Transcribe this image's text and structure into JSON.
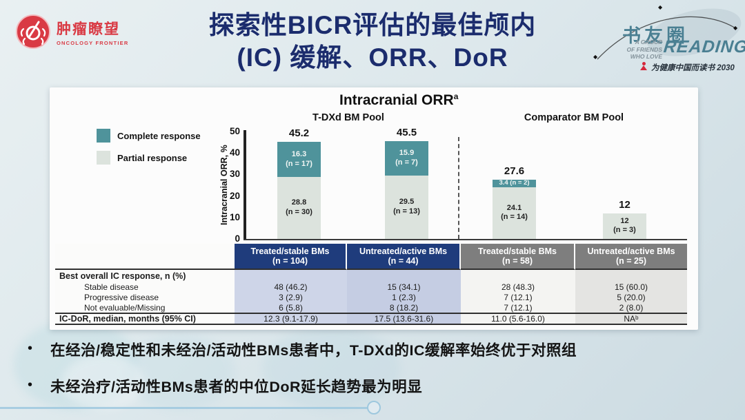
{
  "header": {
    "logo_left": {
      "name_cn": "肿瘤瞭望",
      "name_en": "ONCOLOGY FRONTIER"
    },
    "title_line1": "探索性BICR评估的最佳颅内",
    "title_line2": "(IC) 缓解、ORR、DoR",
    "logo_right": {
      "name_cn": "书友圈",
      "tagline_line1": "A GROUP",
      "tagline_line2": "OF FRIENDS",
      "tagline_line3": "WHO LOVE",
      "name_en": "READING",
      "slogan": "为健康中国而读书 2030"
    }
  },
  "chart_data": {
    "type": "bar",
    "stacked": true,
    "title": "Intracranial ORR",
    "title_sup": "a",
    "ylabel": "Intracranial ORR, %",
    "ylim": [
      0,
      50
    ],
    "yticks": [
      50,
      40,
      30,
      20,
      10,
      0
    ],
    "grid": false,
    "legend_position": "left",
    "groups": [
      "T-DXd BM Pool",
      "Comparator BM Pool"
    ],
    "categories": [
      "Treated/stable BMs (n = 104)",
      "Untreated/active BMs (n = 44)",
      "Treated/stable BMs (n = 58)",
      "Untreated/active BMs (n = 25)"
    ],
    "totals": [
      45.2,
      45.5,
      27.6,
      12
    ],
    "total_labels": [
      "45.2",
      "45.5",
      "27.6",
      "12"
    ],
    "series": [
      {
        "name": "Complete response",
        "color": "#4f939b",
        "values": [
          16.3,
          15.9,
          3.4,
          0
        ],
        "segment_labels": [
          [
            "16.3",
            "(n = 17)"
          ],
          [
            "15.9",
            "(n = 7)"
          ],
          [
            "3.4 (n = 2)"
          ],
          []
        ]
      },
      {
        "name": "Partial response",
        "color": "#dce3dd",
        "values": [
          28.8,
          29.5,
          24.1,
          12
        ],
        "segment_labels": [
          [
            "28.8",
            "(n = 30)"
          ],
          [
            "29.5",
            "(n = 13)"
          ],
          [
            "24.1",
            "(n = 14)"
          ],
          [
            "12",
            "(n = 3)"
          ]
        ]
      }
    ]
  },
  "table": {
    "col_headers": [
      {
        "line1": "Treated/stable BMs",
        "line2": "(n = 104)",
        "style": "navy"
      },
      {
        "line1": "Untreated/active BMs",
        "line2": "(n = 44)",
        "style": "navy"
      },
      {
        "line1": "Treated/stable BMs",
        "line2": "(n = 58)",
        "style": "gray"
      },
      {
        "line1": "Untreated/active BMs",
        "line2": "(n = 25)",
        "style": "gray"
      }
    ],
    "rows": [
      {
        "label": "Best overall IC response, n (%)",
        "bold": true,
        "indent": false,
        "kind": "sec",
        "values": [
          "",
          "",
          "",
          ""
        ]
      },
      {
        "label": "Stable disease",
        "bold": false,
        "indent": true,
        "kind": "sub",
        "values": [
          "48 (46.2)",
          "15 (34.1)",
          "28 (48.3)",
          "15 (60.0)"
        ]
      },
      {
        "label": "Progressive disease",
        "bold": false,
        "indent": true,
        "kind": "sub",
        "values": [
          "3 (2.9)",
          "1 (2.3)",
          "7 (12.1)",
          "5 (20.0)"
        ]
      },
      {
        "label": "Not evaluable/Missing",
        "bold": false,
        "indent": true,
        "kind": "sub",
        "values": [
          "6 (5.8)",
          "8 (18.2)",
          "7 (12.1)",
          "2 (8.0)"
        ]
      },
      {
        "label": "IC-DoR, median, months (95% CI)",
        "bold": true,
        "indent": false,
        "kind": "dor",
        "values": [
          "12.3 (9.1-17.9)",
          "17.5 (13.6-31.6)",
          "11.0 (5.6-16.0)",
          "NAᵇ"
        ]
      }
    ]
  },
  "bullets": [
    "在经治/稳定性和未经治/活动性BMs患者中，T-DXd的IC缓解率始终优于对照组",
    "未经治疗/活动性BMs患者的中位DoR延长趋势最为明显"
  ]
}
